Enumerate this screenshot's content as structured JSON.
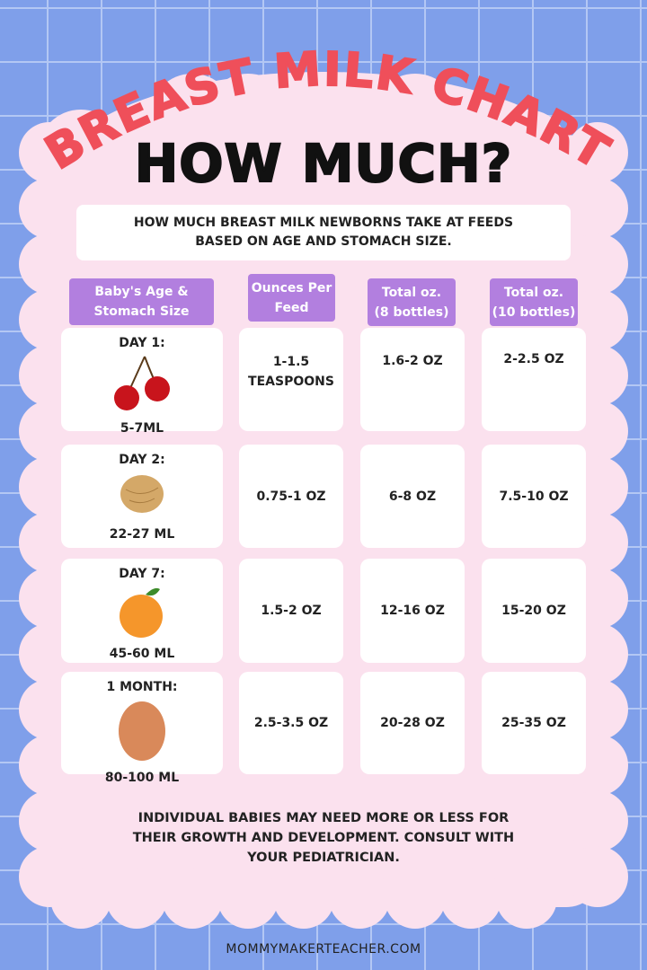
{
  "title": "BREAST MILK CHART",
  "heading": "HOW MUCH?",
  "subtitle_line1": "HOW MUCH BREAST MILK NEWBORNS TAKE AT FEEDS",
  "subtitle_line2": "BASED ON AGE AND STOMACH SIZE.",
  "colors": {
    "background": "#7f9fea",
    "panel": "#fbe1ee",
    "title": "#ef4f5a",
    "header": "#b27fdf"
  },
  "headers": [
    {
      "l1": "Baby's Age &",
      "l2": "Stomach Size"
    },
    {
      "l1": "Ounces Per",
      "l2": "Feed"
    },
    {
      "l1": "Total oz.",
      "l2": "(8 bottles)"
    },
    {
      "l1": "Total oz.",
      "l2": "(10 bottles)"
    }
  ],
  "rows": [
    {
      "age": "DAY 1:",
      "icon": "cherry-icon",
      "size": "5-7ML",
      "per_feed_l1": "1-1.5",
      "per_feed_l2": "TEASPOONS",
      "total8": "1.6-2 OZ",
      "total10": "2-2.5 OZ"
    },
    {
      "age": "DAY 2:",
      "icon": "walnut-icon",
      "size": "22-27 ML",
      "per_feed_l1": "0.75-1 OZ",
      "per_feed_l2": "",
      "total8": "6-8 OZ",
      "total10": "7.5-10 OZ"
    },
    {
      "age": "DAY 7:",
      "icon": "apricot-icon",
      "size": "45-60 ML",
      "per_feed_l1": "1.5-2 OZ",
      "per_feed_l2": "",
      "total8": "12-16 OZ",
      "total10": "15-20 OZ"
    },
    {
      "age": "1 MONTH:",
      "icon": "egg-icon",
      "size": "80-100 ML",
      "per_feed_l1": "2.5-3.5 OZ",
      "per_feed_l2": "",
      "total8": "20-28 OZ",
      "total10": "25-35 OZ"
    }
  ],
  "footer_l1": "INDIVIDUAL BABIES MAY NEED MORE OR LESS FOR",
  "footer_l2": "THEIR GROWTH AND DEVELOPMENT. CONSULT WITH",
  "footer_l3": "YOUR PEDIATRICIAN.",
  "url": "MOMMYMAKERTEACHER.COM"
}
